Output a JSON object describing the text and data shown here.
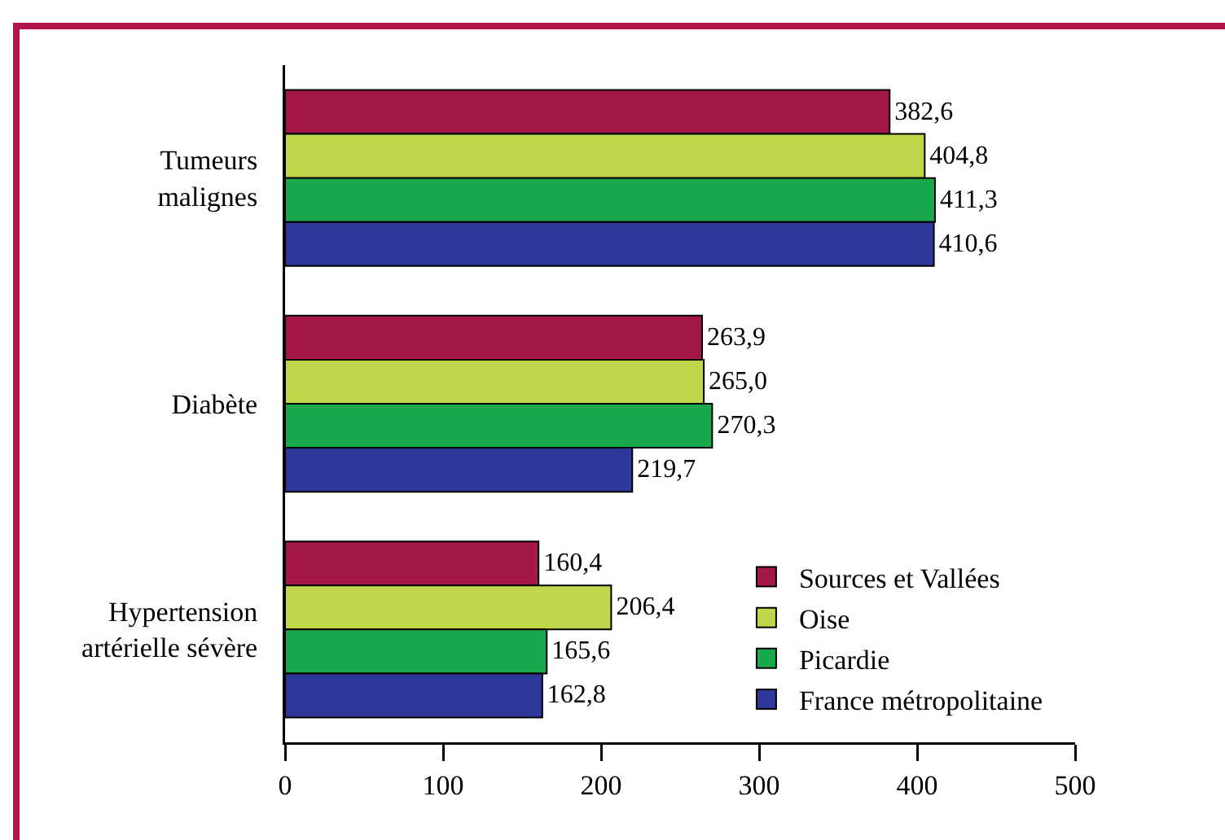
{
  "chart_data": {
    "type": "bar",
    "orientation": "horizontal",
    "categories": [
      "Tumeurs malignes",
      "Diabète",
      "Hypertension artérielle sévère"
    ],
    "series": [
      {
        "name": "Sources et Vallées",
        "color": "#a31749",
        "values": [
          382.6,
          263.9,
          160.4
        ],
        "value_labels": [
          "382,6",
          "263,9",
          "160,4"
        ]
      },
      {
        "name": "Oise",
        "color": "#bed64a",
        "values": [
          404.8,
          265.0,
          206.4
        ],
        "value_labels": [
          "404,8",
          "265,0",
          "206,4"
        ]
      },
      {
        "name": "Picardie",
        "color": "#19a94c",
        "values": [
          411.3,
          270.3,
          165.6
        ],
        "value_labels": [
          "411,3",
          "270,3",
          "165,6"
        ]
      },
      {
        "name": "France métropolitaine",
        "color": "#2e3898",
        "values": [
          410.6,
          219.7,
          162.8
        ],
        "value_labels": [
          "410,6",
          "219,7",
          "162,8"
        ]
      }
    ],
    "xlim": [
      0,
      500
    ],
    "xticks": [
      0,
      100,
      200,
      300,
      400,
      500
    ],
    "grid": false,
    "legend": "bottom right"
  }
}
